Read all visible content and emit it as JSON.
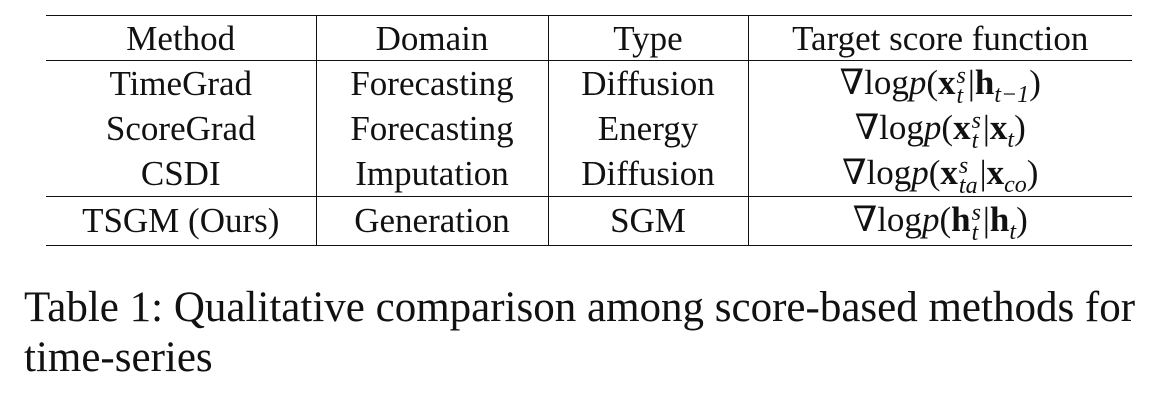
{
  "table": {
    "headers": [
      "Method",
      "Domain",
      "Type",
      "Target score function"
    ],
    "rows": [
      {
        "method": "TimeGrad",
        "domain": "Forecasting",
        "type": "Diffusion",
        "target": {
          "prefix": "∇log",
          "p": "p",
          "open": "(",
          "var": "x",
          "sup": "s",
          "sub": "t",
          "bar": "|",
          "cond": "h",
          "cond_sub": "t−1",
          "close": ")"
        }
      },
      {
        "method": "ScoreGrad",
        "domain": "Forecasting",
        "type": "Energy",
        "target": {
          "prefix": "∇log",
          "p": "p",
          "open": "(",
          "var": "x",
          "sup": "s",
          "sub": "t",
          "bar": "|",
          "cond": "x",
          "cond_sub": "t",
          "close": ")"
        }
      },
      {
        "method": "CSDI",
        "domain": "Imputation",
        "type": "Diffusion",
        "target": {
          "prefix": "∇log",
          "p": "p",
          "open": "(",
          "var": "x",
          "sup": "s",
          "sub": "ta",
          "bar": "|",
          "cond": "x",
          "cond_sub": "co",
          "close": ")"
        }
      },
      {
        "method": "TSGM (Ours)",
        "domain": "Generation",
        "type": "SGM",
        "target": {
          "prefix": "∇log",
          "p": "p",
          "open": "(",
          "var": "h",
          "sup": "s",
          "sub": "t",
          "bar": "|",
          "cond": "h",
          "cond_sub": "t",
          "close": ")"
        }
      }
    ]
  },
  "caption": {
    "text": "Table 1: Qualitative comparison among score-based methods for time-series"
  }
}
